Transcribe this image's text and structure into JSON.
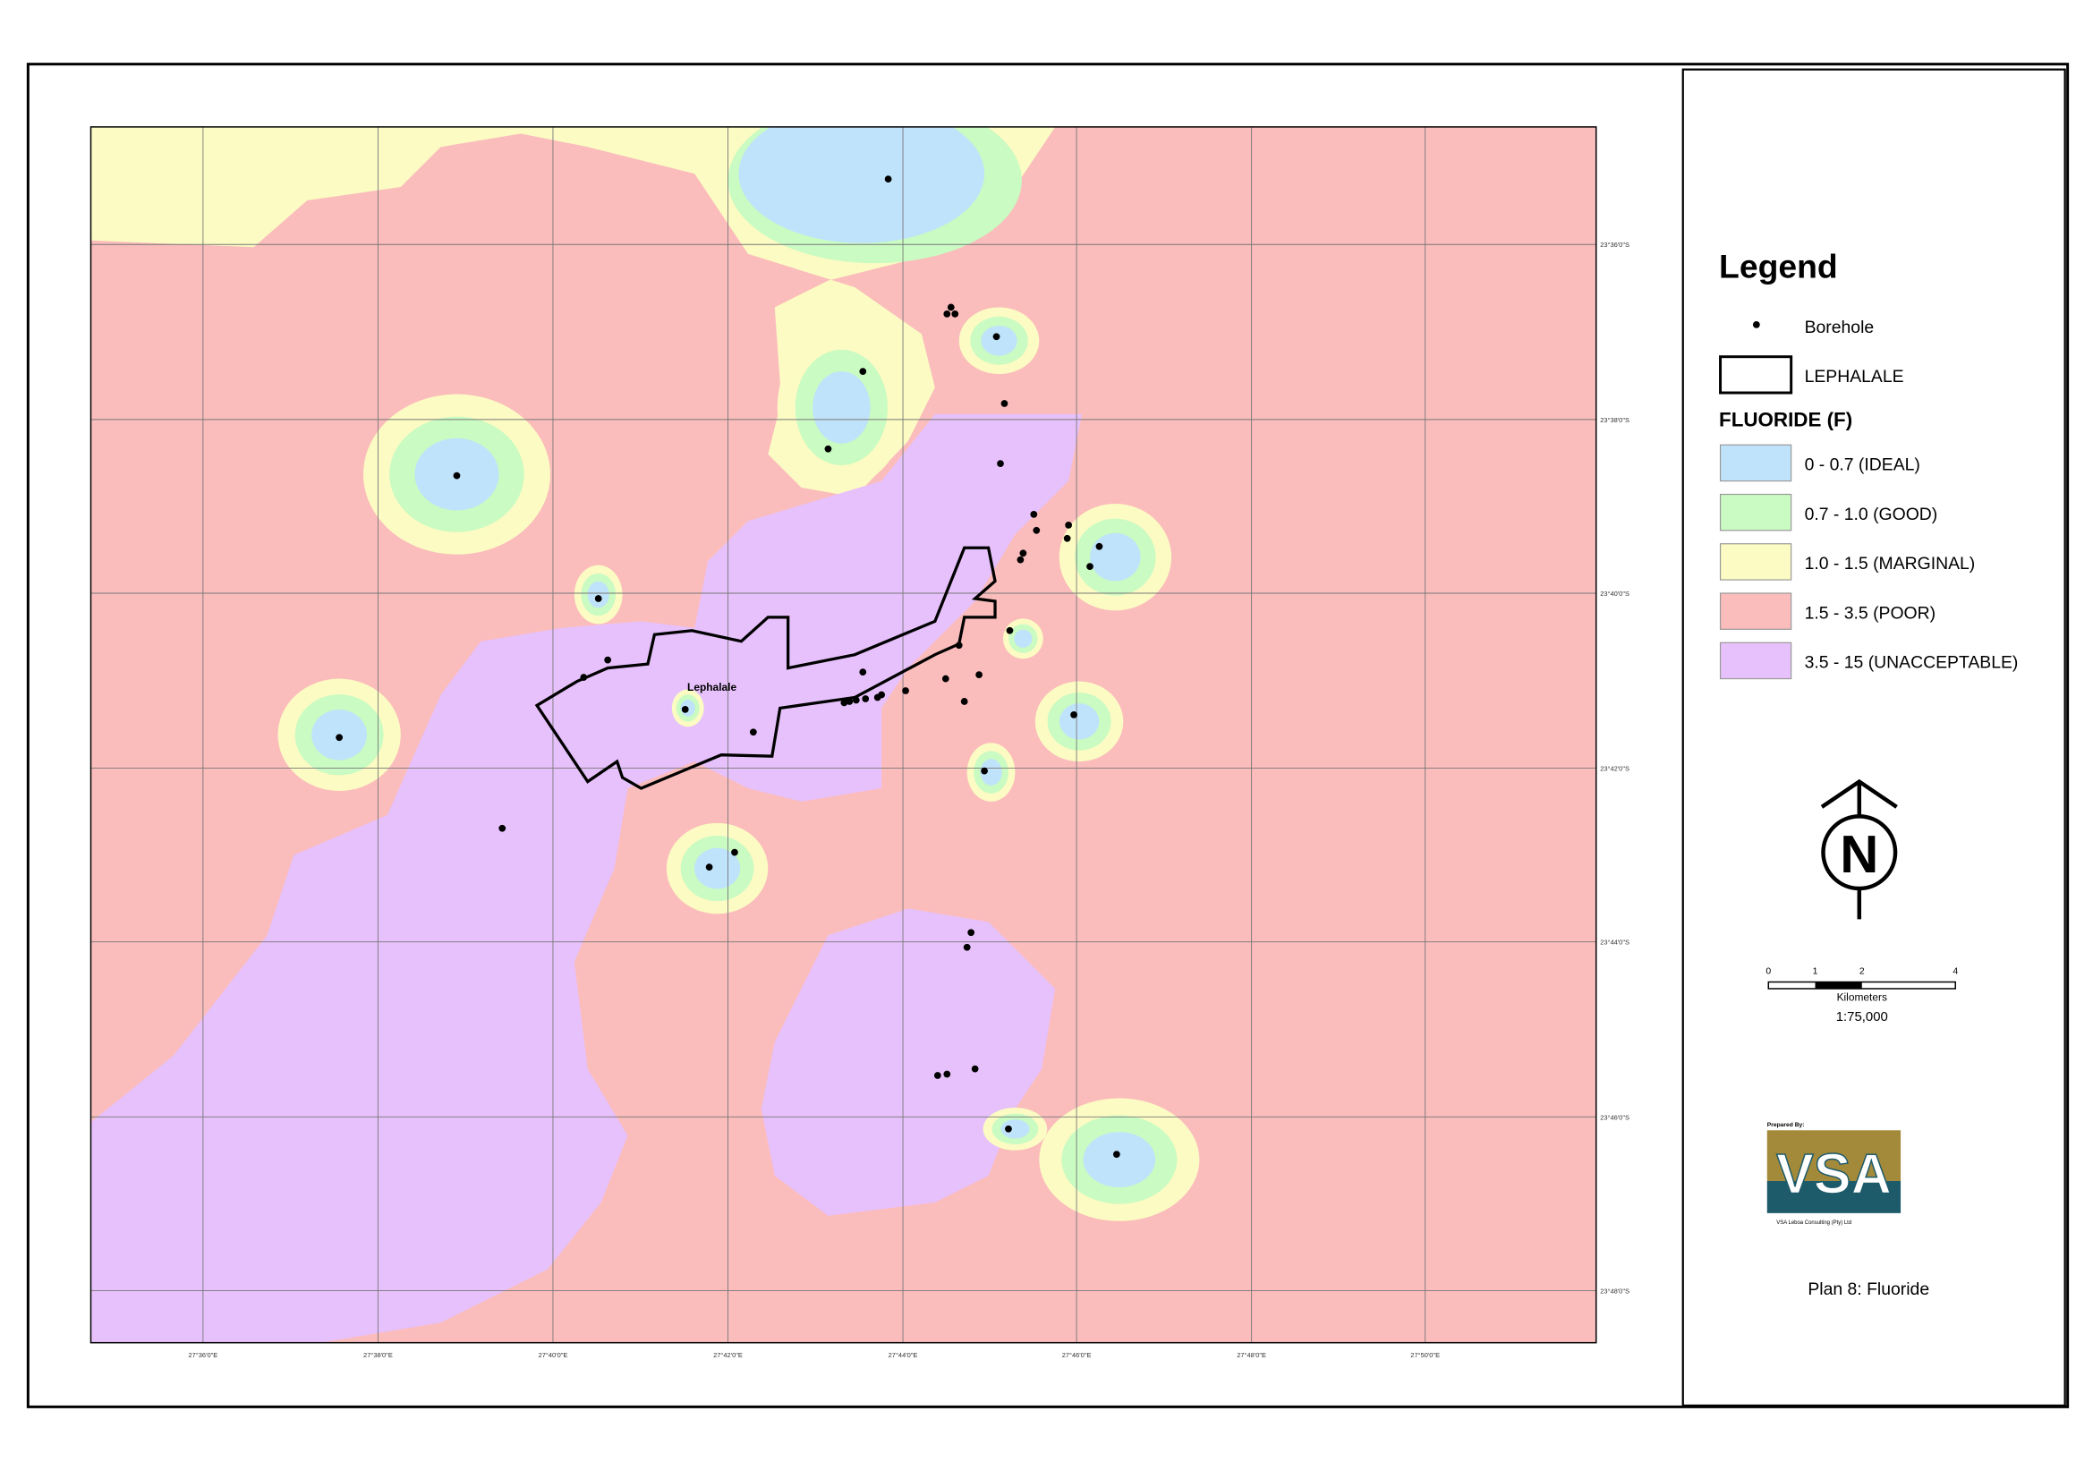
{
  "map": {
    "x_ticks": [
      "27°36'0\"E",
      "27°38'0\"E",
      "27°40'0\"E",
      "27°42'0\"E",
      "27°44'0\"E",
      "27°46'0\"E",
      "27°48'0\"E",
      "27°50'0\"E"
    ],
    "y_ticks": [
      "23°36'0\"S",
      "23°38'0\"S",
      "23°40'0\"S",
      "23°42'0\"S",
      "23°44'0\"S",
      "23°46'0\"S",
      "23°48'0\"S"
    ],
    "town_label": "Lephalale"
  },
  "legend": {
    "title": "Legend",
    "borehole": "Borehole",
    "boundary": "LEPHALALE",
    "fluoride_title": "FLUORIDE (F)",
    "classes": [
      {
        "label": "0 - 0.7 (IDEAL)",
        "color": "#bfe3fb"
      },
      {
        "label": "0.7 - 1.0 (GOOD)",
        "color": "#c9fbc2"
      },
      {
        "label": "1.0 - 1.5 (MARGINAL)",
        "color": "#fbfbc3"
      },
      {
        "label": "1.5 - 3.5 (POOR)",
        "color": "#fbbcbc"
      },
      {
        "label": "3.5 - 15 (UNACCEPTABLE)",
        "color": "#e7c1fb"
      }
    ]
  },
  "north": "N",
  "scale": {
    "ticks": [
      "0",
      "1",
      "2",
      "4"
    ],
    "unit": "Kilometers",
    "ratio": "1:75,000"
  },
  "logo": {
    "prepared_by": "Prepared By:",
    "mark": "VSA",
    "company": "VSA Leboa Consulting (Pty) Ltd"
  },
  "caption": "Plan 8: Fluoride"
}
